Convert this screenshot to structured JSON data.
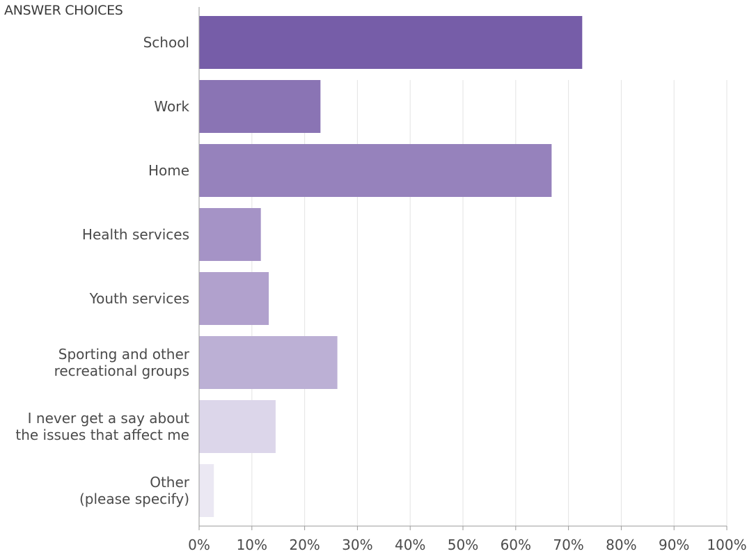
{
  "chart_data": {
    "type": "bar",
    "orientation": "horizontal",
    "title": "",
    "ylabel": "ANSWER CHOICES",
    "xlabel": "",
    "categories": [
      [
        "School"
      ],
      [
        "Work"
      ],
      [
        "Home"
      ],
      [
        "Health services"
      ],
      [
        "Youth services"
      ],
      [
        "Sporting and other",
        "recreational groups"
      ],
      [
        "I never get a say about",
        "the issues that affect me"
      ],
      [
        "Other",
        "(please specify)"
      ]
    ],
    "values": [
      72.6,
      23.0,
      66.8,
      11.7,
      13.2,
      26.2,
      14.5,
      2.8
    ],
    "value_unit": "%",
    "xlim": [
      0,
      100
    ],
    "x_ticks": [
      "0%",
      "10%",
      "20%",
      "30%",
      "40%",
      "50%",
      "60%",
      "70%",
      "80%",
      "90%",
      "100%"
    ],
    "grid": "vertical",
    "bar_colors": [
      "#765da8",
      "#8a74b4",
      "#9682bc",
      "#a593c6",
      "#b1a1cd",
      "#bcb0d5",
      "#dcd6ea",
      "#ebe8f3"
    ],
    "grid_color": "#e3e3e3",
    "axis_color": "#9a9a9a"
  }
}
